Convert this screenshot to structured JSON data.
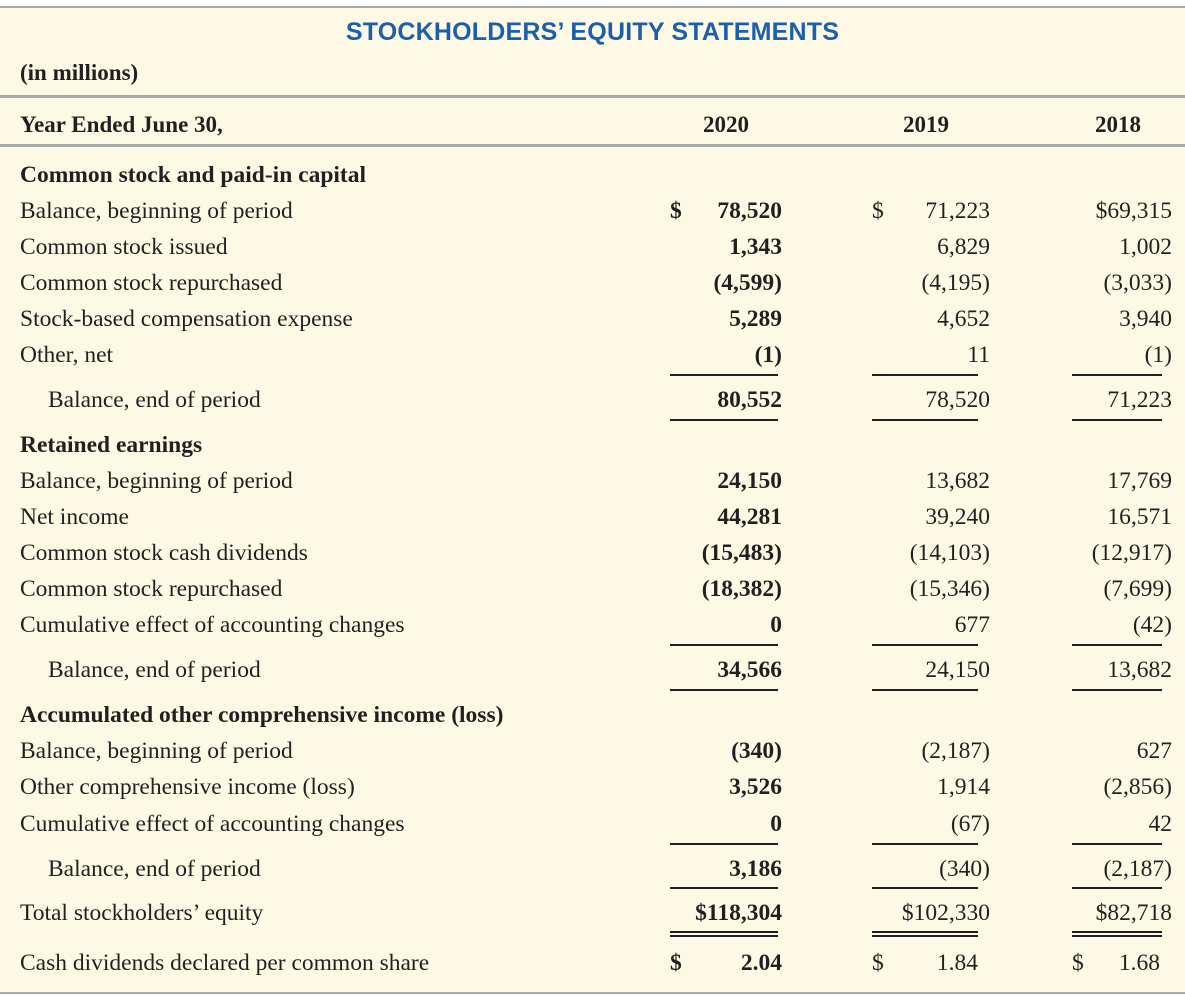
{
  "title": "STOCKHOLDERS’ EQUITY STATEMENTS",
  "units": "(in millions)",
  "header": {
    "label": "Year Ended June 30,",
    "years": [
      "2020",
      "2019",
      "2018"
    ]
  },
  "sections": [
    {
      "heading": "Common stock and paid-in capital",
      "rows": [
        {
          "label": "Balance, beginning of period",
          "values": [
            "78,520",
            "71,223",
            "$69,315"
          ],
          "dollar": [
            "$",
            "$",
            ""
          ]
        },
        {
          "label": "Common stock issued",
          "values": [
            "1,343",
            "6,829",
            "1,002"
          ]
        },
        {
          "label": "Common stock repurchased",
          "values": [
            "(4,599)",
            "(4,195)",
            "(3,033)"
          ]
        },
        {
          "label": "Stock-based compensation expense",
          "values": [
            "5,289",
            "4,652",
            "3,940"
          ]
        },
        {
          "label": "Other, net",
          "values": [
            "(1)",
            "11",
            "(1)"
          ]
        }
      ],
      "total": {
        "label": "Balance, end of period",
        "values": [
          "80,552",
          "78,520",
          "71,223"
        ]
      }
    },
    {
      "heading": "Retained earnings",
      "rows": [
        {
          "label": "Balance, beginning of period",
          "values": [
            "24,150",
            "13,682",
            "17,769"
          ]
        },
        {
          "label": "Net income",
          "values": [
            "44,281",
            "39,240",
            "16,571"
          ]
        },
        {
          "label": "Common stock cash dividends",
          "values": [
            "(15,483)",
            "(14,103)",
            "(12,917)"
          ]
        },
        {
          "label": "Common stock repurchased",
          "values": [
            "(18,382)",
            "(15,346)",
            "(7,699)"
          ]
        },
        {
          "label": "Cumulative effect of accounting changes",
          "values": [
            "0",
            "677",
            "(42)"
          ]
        }
      ],
      "total": {
        "label": "Balance, end of period",
        "values": [
          "34,566",
          "24,150",
          "13,682"
        ]
      }
    },
    {
      "heading": "Accumulated other comprehensive income (loss)",
      "rows": [
        {
          "label": "Balance, beginning of period",
          "values": [
            "(340)",
            "(2,187)",
            "627"
          ]
        },
        {
          "label": "Other comprehensive income (loss)",
          "values": [
            "3,526",
            "1,914",
            "(2,856)"
          ]
        },
        {
          "label": "Cumulative effect of accounting changes",
          "values": [
            "0",
            "(67)",
            "42"
          ]
        }
      ],
      "total": {
        "label": "Balance, end of period",
        "values": [
          "3,186",
          "(340)",
          "(2,187)"
        ]
      }
    }
  ],
  "grand_total": {
    "label": "Total stockholders’ equity",
    "values": [
      "$118,304",
      "$102,330",
      "$82,718"
    ]
  },
  "dividends_per_share": {
    "label": "Cash dividends declared per common share",
    "dollar": "$",
    "values": [
      "2.04",
      "1.84",
      "1.68"
    ]
  }
}
